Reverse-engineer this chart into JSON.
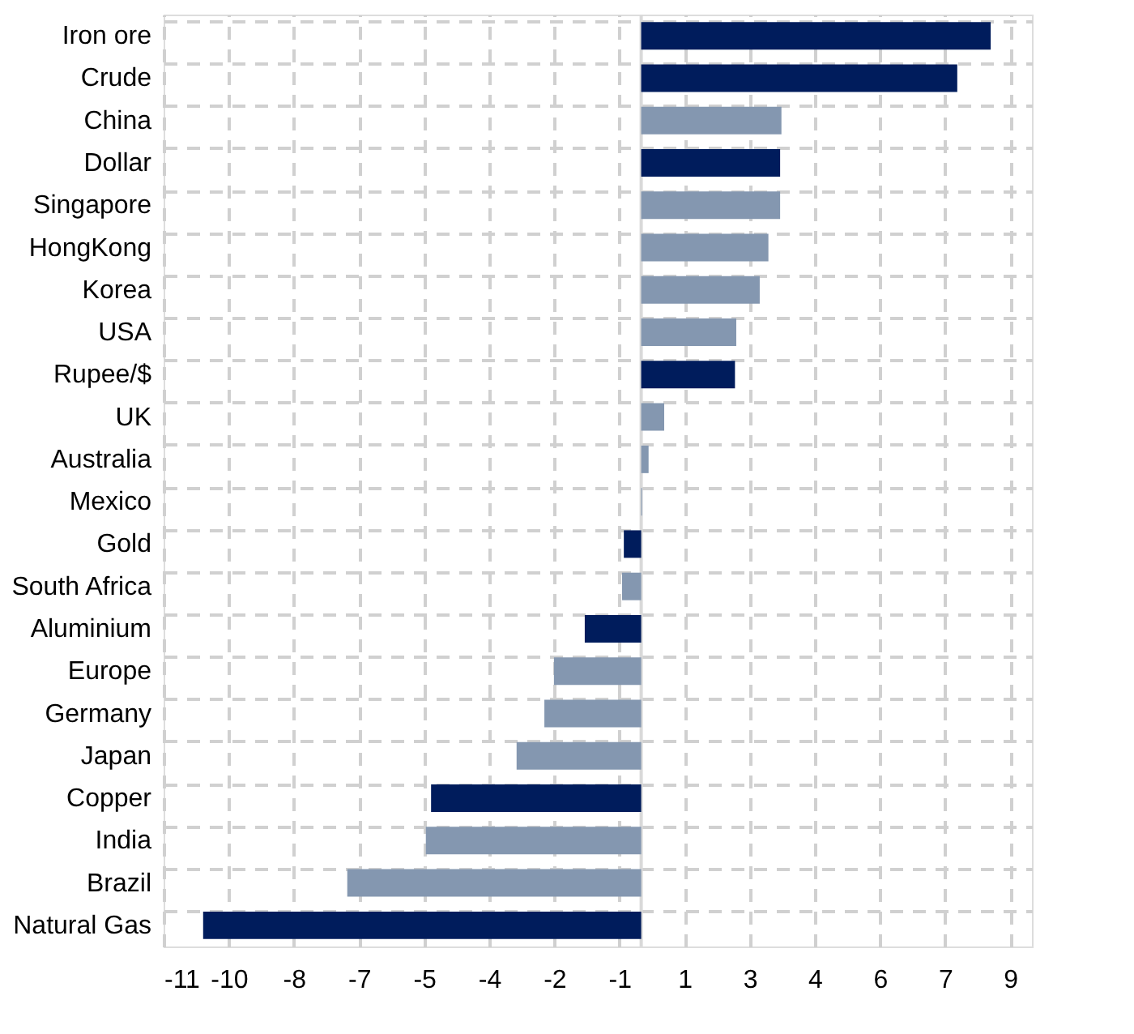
{
  "chart_data": {
    "type": "bar",
    "orientation": "horizontal",
    "categories": [
      "Iron ore",
      "Crude",
      "China",
      "Dollar",
      "Singapore",
      "HongKong",
      "Korea",
      "USA",
      "Rupee/$",
      "UK",
      "Australia",
      "Mexico",
      "Gold",
      "South Africa",
      "Aluminium",
      "Europe",
      "Germany",
      "Japan",
      "Copper",
      "India",
      "Brazil",
      "Natural Gas"
    ],
    "values": [
      8.05,
      7.28,
      3.23,
      3.2,
      3.2,
      2.93,
      2.73,
      2.19,
      2.16,
      0.53,
      0.17,
      0.02,
      -0.4,
      -0.44,
      -1.3,
      -2.01,
      -2.23,
      -2.87,
      -4.84,
      -4.96,
      -6.77,
      -10.09
    ],
    "colors": [
      "#001c5c",
      "#001c5c",
      "#8497b0",
      "#001c5c",
      "#8497b0",
      "#8497b0",
      "#8497b0",
      "#8497b0",
      "#001c5c",
      "#8497b0",
      "#8497b0",
      "#8497b0",
      "#001c5c",
      "#8497b0",
      "#001c5c",
      "#8497b0",
      "#8497b0",
      "#8497b0",
      "#001c5c",
      "#8497b0",
      "#8497b0",
      "#001c5c"
    ],
    "xlim": [
      -11,
      9
    ],
    "xticks": [
      -11,
      {
        "value": -9.5,
        "label": "-10"
      },
      -8,
      {
        "value": -6.5,
        "label": "-7"
      },
      -5,
      {
        "value": -3.5,
        "label": "-4"
      },
      -2,
      {
        "value": -0.5,
        "label": "-1"
      },
      1,
      {
        "value": 2.5,
        "label": "3"
      },
      4,
      {
        "value": 5.5,
        "label": "6"
      },
      7,
      {
        "value": 8.5,
        "label": "9"
      }
    ],
    "grid": true
  }
}
